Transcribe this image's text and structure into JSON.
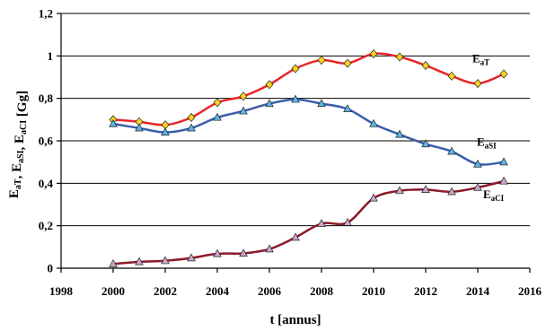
{
  "chart_data": {
    "type": "line",
    "x": [
      2000,
      2001,
      2002,
      2003,
      2004,
      2005,
      2006,
      2007,
      2008,
      2009,
      2010,
      2011,
      2012,
      2013,
      2014,
      2015
    ],
    "series": [
      {
        "name": "EaT",
        "label_main": "E",
        "label_sub": "aT",
        "color": "#e8262a",
        "marker": "diamond",
        "marker_fill": "#ffd21f",
        "values": [
          0.7,
          0.69,
          0.675,
          0.71,
          0.78,
          0.81,
          0.865,
          0.94,
          0.98,
          0.965,
          1.01,
          0.995,
          0.955,
          0.905,
          0.87,
          0.915
        ]
      },
      {
        "name": "EaSI",
        "label_main": "E",
        "label_sub": "aSI",
        "color": "#3a5ea8",
        "marker": "triangle",
        "marker_fill": "#5fb4e8",
        "values": [
          0.68,
          0.66,
          0.64,
          0.66,
          0.71,
          0.74,
          0.775,
          0.795,
          0.775,
          0.75,
          0.68,
          0.63,
          0.585,
          0.55,
          0.49,
          0.5
        ]
      },
      {
        "name": "EaCI",
        "label_main": "E",
        "label_sub": "aCI",
        "color": "#8b1a2a",
        "marker": "triangle",
        "marker_fill": "#c8a8c8",
        "values": [
          0.02,
          0.03,
          0.035,
          0.048,
          0.068,
          0.07,
          0.09,
          0.145,
          0.21,
          0.215,
          0.33,
          0.365,
          0.37,
          0.36,
          0.38,
          0.41
        ]
      }
    ],
    "xlim": [
      1998,
      2016
    ],
    "ylim": [
      0,
      1.2
    ],
    "xticks": [
      "1998",
      "2000",
      "2002",
      "2004",
      "2006",
      "2008",
      "2010",
      "2012",
      "2014",
      "2016"
    ],
    "yticks": [
      "0",
      "0,2",
      "0,4",
      "0,6",
      "0,8",
      "1",
      "1,2"
    ],
    "xlabel": "t [annus]",
    "ylabel": "EaT, EaSI, EaCI [Gg]",
    "ylabel_parts": [
      {
        "main": "E",
        "sub": "aT"
      },
      {
        "main": ", E",
        "sub": "aSI"
      },
      {
        "main": ", E",
        "sub": "aCI"
      },
      {
        "main": " [Gg]",
        "sub": ""
      }
    ],
    "grid": "horizontal",
    "legend": "inline labels at right end of each series"
  }
}
